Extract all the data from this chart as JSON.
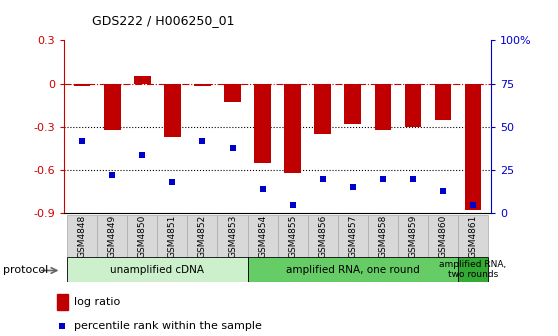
{
  "title": "GDS222 / H006250_01",
  "samples": [
    "GSM4848",
    "GSM4849",
    "GSM4850",
    "GSM4851",
    "GSM4852",
    "GSM4853",
    "GSM4854",
    "GSM4855",
    "GSM4856",
    "GSM4857",
    "GSM4858",
    "GSM4859",
    "GSM4860",
    "GSM4861"
  ],
  "log_ratio": [
    -0.02,
    -0.32,
    0.05,
    -0.37,
    -0.02,
    -0.13,
    -0.55,
    -0.62,
    -0.35,
    -0.28,
    -0.32,
    -0.3,
    -0.25,
    -0.88
  ],
  "percentile_vals": [
    42,
    22,
    34,
    18,
    42,
    38,
    14,
    5,
    20,
    15,
    20,
    20,
    13,
    5
  ],
  "ylim_left": [
    -0.9,
    0.3
  ],
  "ylim_right": [
    0,
    100
  ],
  "bar_color": "#c00000",
  "scatter_color": "#0000cc",
  "dashed_line_color": "#cc0000",
  "dotted_line_color": "#000000",
  "left_axis_color": "#cc0000",
  "right_axis_color": "#0000cc",
  "protocol_groups": [
    {
      "label": "unamplified cDNA",
      "start": 0,
      "end": 5,
      "color": "#ccf0cc"
    },
    {
      "label": "amplified RNA, one round",
      "start": 6,
      "end": 12,
      "color": "#66cc66"
    },
    {
      "label": "amplified RNA,\ntwo rounds",
      "start": 13,
      "end": 13,
      "color": "#33aa33"
    }
  ],
  "sample_bg_color": "#d8d8d8",
  "sample_border_color": "#aaaaaa"
}
